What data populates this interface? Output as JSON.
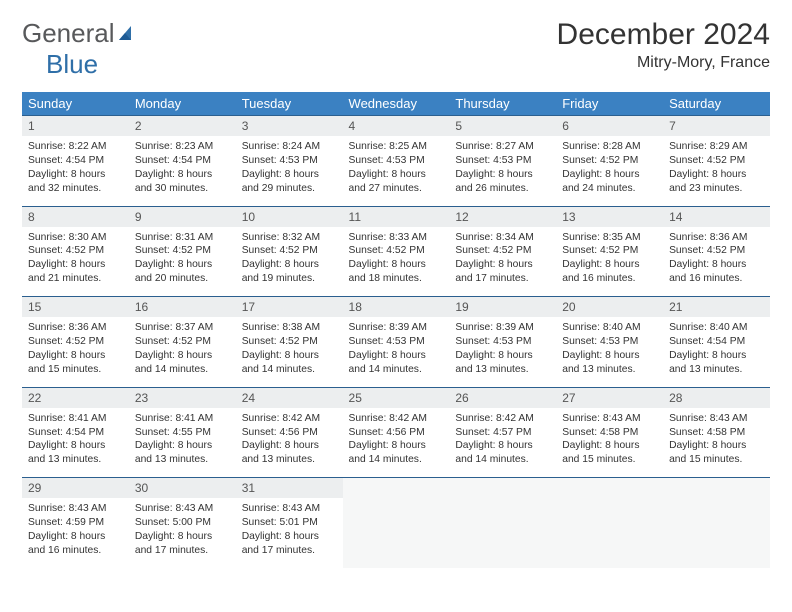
{
  "brand": {
    "word1": "General",
    "word2": "Blue"
  },
  "title": "December 2024",
  "subtitle": "Mitry-Mory, France",
  "colors": {
    "header_bg": "#3b81c2",
    "header_text": "#ffffff",
    "daynum_bg": "#eceeef",
    "daynum_border": "#2b5f8f",
    "body_text": "#333333",
    "logo_gray": "#58595b",
    "logo_blue": "#2f6fa8"
  },
  "day_names": [
    "Sunday",
    "Monday",
    "Tuesday",
    "Wednesday",
    "Thursday",
    "Friday",
    "Saturday"
  ],
  "weeks": [
    [
      {
        "n": "1",
        "sr": "8:22 AM",
        "ss": "4:54 PM",
        "dl": "8 hours and 32 minutes."
      },
      {
        "n": "2",
        "sr": "8:23 AM",
        "ss": "4:54 PM",
        "dl": "8 hours and 30 minutes."
      },
      {
        "n": "3",
        "sr": "8:24 AM",
        "ss": "4:53 PM",
        "dl": "8 hours and 29 minutes."
      },
      {
        "n": "4",
        "sr": "8:25 AM",
        "ss": "4:53 PM",
        "dl": "8 hours and 27 minutes."
      },
      {
        "n": "5",
        "sr": "8:27 AM",
        "ss": "4:53 PM",
        "dl": "8 hours and 26 minutes."
      },
      {
        "n": "6",
        "sr": "8:28 AM",
        "ss": "4:52 PM",
        "dl": "8 hours and 24 minutes."
      },
      {
        "n": "7",
        "sr": "8:29 AM",
        "ss": "4:52 PM",
        "dl": "8 hours and 23 minutes."
      }
    ],
    [
      {
        "n": "8",
        "sr": "8:30 AM",
        "ss": "4:52 PM",
        "dl": "8 hours and 21 minutes."
      },
      {
        "n": "9",
        "sr": "8:31 AM",
        "ss": "4:52 PM",
        "dl": "8 hours and 20 minutes."
      },
      {
        "n": "10",
        "sr": "8:32 AM",
        "ss": "4:52 PM",
        "dl": "8 hours and 19 minutes."
      },
      {
        "n": "11",
        "sr": "8:33 AM",
        "ss": "4:52 PM",
        "dl": "8 hours and 18 minutes."
      },
      {
        "n": "12",
        "sr": "8:34 AM",
        "ss": "4:52 PM",
        "dl": "8 hours and 17 minutes."
      },
      {
        "n": "13",
        "sr": "8:35 AM",
        "ss": "4:52 PM",
        "dl": "8 hours and 16 minutes."
      },
      {
        "n": "14",
        "sr": "8:36 AM",
        "ss": "4:52 PM",
        "dl": "8 hours and 16 minutes."
      }
    ],
    [
      {
        "n": "15",
        "sr": "8:36 AM",
        "ss": "4:52 PM",
        "dl": "8 hours and 15 minutes."
      },
      {
        "n": "16",
        "sr": "8:37 AM",
        "ss": "4:52 PM",
        "dl": "8 hours and 14 minutes."
      },
      {
        "n": "17",
        "sr": "8:38 AM",
        "ss": "4:52 PM",
        "dl": "8 hours and 14 minutes."
      },
      {
        "n": "18",
        "sr": "8:39 AM",
        "ss": "4:53 PM",
        "dl": "8 hours and 14 minutes."
      },
      {
        "n": "19",
        "sr": "8:39 AM",
        "ss": "4:53 PM",
        "dl": "8 hours and 13 minutes."
      },
      {
        "n": "20",
        "sr": "8:40 AM",
        "ss": "4:53 PM",
        "dl": "8 hours and 13 minutes."
      },
      {
        "n": "21",
        "sr": "8:40 AM",
        "ss": "4:54 PM",
        "dl": "8 hours and 13 minutes."
      }
    ],
    [
      {
        "n": "22",
        "sr": "8:41 AM",
        "ss": "4:54 PM",
        "dl": "8 hours and 13 minutes."
      },
      {
        "n": "23",
        "sr": "8:41 AM",
        "ss": "4:55 PM",
        "dl": "8 hours and 13 minutes."
      },
      {
        "n": "24",
        "sr": "8:42 AM",
        "ss": "4:56 PM",
        "dl": "8 hours and 13 minutes."
      },
      {
        "n": "25",
        "sr": "8:42 AM",
        "ss": "4:56 PM",
        "dl": "8 hours and 14 minutes."
      },
      {
        "n": "26",
        "sr": "8:42 AM",
        "ss": "4:57 PM",
        "dl": "8 hours and 14 minutes."
      },
      {
        "n": "27",
        "sr": "8:43 AM",
        "ss": "4:58 PM",
        "dl": "8 hours and 15 minutes."
      },
      {
        "n": "28",
        "sr": "8:43 AM",
        "ss": "4:58 PM",
        "dl": "8 hours and 15 minutes."
      }
    ],
    [
      {
        "n": "29",
        "sr": "8:43 AM",
        "ss": "4:59 PM",
        "dl": "8 hours and 16 minutes."
      },
      {
        "n": "30",
        "sr": "8:43 AM",
        "ss": "5:00 PM",
        "dl": "8 hours and 17 minutes."
      },
      {
        "n": "31",
        "sr": "8:43 AM",
        "ss": "5:01 PM",
        "dl": "8 hours and 17 minutes."
      },
      null,
      null,
      null,
      null
    ]
  ],
  "labels": {
    "sunrise": "Sunrise: ",
    "sunset": "Sunset: ",
    "daylight": "Daylight: "
  }
}
